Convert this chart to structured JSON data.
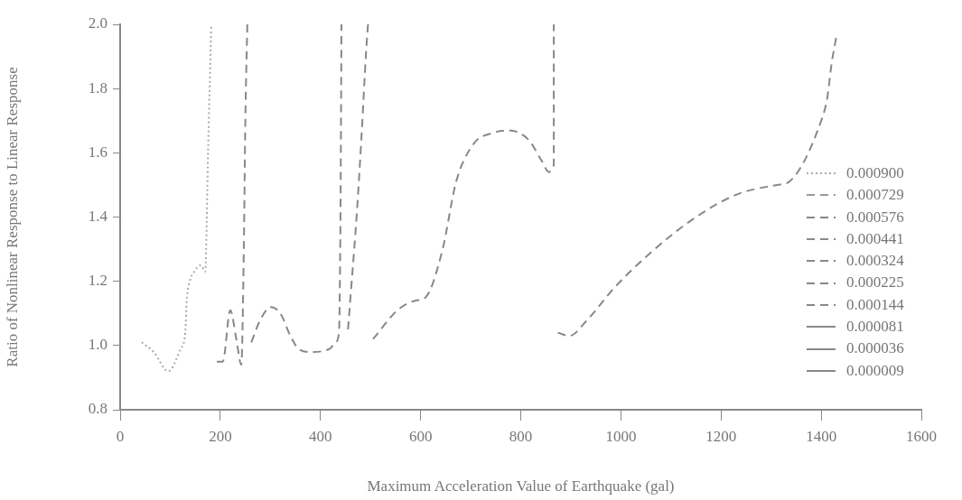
{
  "chart_data": {
    "type": "line",
    "xlabel": "Maximum Acceleration Value of Earthquake (gal)",
    "ylabel": "Ratio of Nonlinear Response to Linear Response",
    "xlim": [
      0,
      1600
    ],
    "xticks": [
      0,
      200,
      400,
      600,
      800,
      1000,
      1200,
      1400,
      1600
    ],
    "ylim": [
      0.8,
      2.0
    ],
    "yticks": [
      0.8,
      {
        "value": 1,
        "label": "1.0"
      },
      1.2,
      1.4,
      1.6,
      1.8,
      {
        "value": 2,
        "label": "2.0"
      }
    ],
    "grid": false,
    "legend": "right",
    "marker": "none",
    "series": [
      {
        "name": "0.000900",
        "color": "#aaaaaa",
        "line_style": "dotted",
        "x": [
          43,
          67,
          96,
          121,
          130,
          133,
          139,
          148,
          161,
          170,
          172,
          175,
          182
        ],
        "values": [
          1.01,
          0.98,
          0.92,
          0.99,
          1.04,
          1.14,
          1.2,
          1.23,
          1.25,
          1.23,
          1.32,
          1.56,
          2.0
        ]
      },
      {
        "name": "0.000729",
        "color": "#999999",
        "line_style": "dashed"
      },
      {
        "name": "0.000576",
        "color": "#888888",
        "line_style": "dashed",
        "x": [
          193,
          205,
          220,
          232,
          242,
          247,
          250,
          254
        ],
        "values": [
          0.95,
          0.95,
          1.11,
          1.02,
          0.94,
          1.3,
          1.7,
          2.0
        ]
      },
      {
        "name": "0.000441",
        "color": "#888888",
        "line_style": "dashed",
        "x": [
          262,
          280,
          301,
          320,
          340,
          356,
          380,
          419,
          430,
          437,
          440,
          442
        ],
        "values": [
          1.01,
          1.08,
          1.12,
          1.1,
          1.03,
          0.99,
          0.98,
          0.99,
          1.01,
          1.04,
          1.4,
          2.0
        ]
      },
      {
        "name": "0.000324",
        "color": "#888888",
        "line_style": "dashed",
        "x": [
          455,
          460,
          473,
          482,
          491,
          495
        ],
        "values": [
          1.05,
          1.15,
          1.42,
          1.65,
          1.91,
          2.0
        ]
      },
      {
        "name": "0.000225",
        "color": "#888888",
        "line_style": "dashed",
        "x": [
          505,
          554,
          590,
          610,
          644,
          671,
          707,
          740,
          776,
          816,
          840,
          857,
          866,
          866
        ],
        "values": [
          1.02,
          1.11,
          1.14,
          1.15,
          1.3,
          1.51,
          1.63,
          1.66,
          1.67,
          1.64,
          1.58,
          1.54,
          1.56,
          2.0
        ]
      },
      {
        "name": "0.000144",
        "color": "#888888",
        "line_style": "dashed",
        "x": [
          874,
          897,
          933,
          987,
          1060,
          1150,
          1231,
          1312,
          1336,
          1400,
          1412,
          1421,
          1430
        ],
        "values": [
          1.04,
          1.03,
          1.08,
          1.18,
          1.29,
          1.4,
          1.47,
          1.5,
          1.51,
          1.7,
          1.77,
          1.88,
          1.96
        ]
      },
      {
        "name": "0.000081",
        "color": "#888888",
        "line_style": "solid"
      },
      {
        "name": "0.000036",
        "color": "#888888",
        "line_style": "solid"
      },
      {
        "name": "0.000009",
        "color": "#888888",
        "line_style": "solid"
      }
    ]
  }
}
